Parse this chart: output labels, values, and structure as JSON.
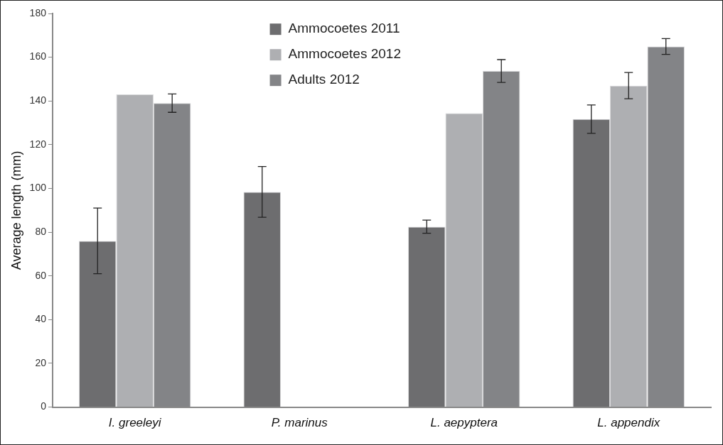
{
  "chart_data": {
    "type": "bar",
    "ylabel": "Average length (mm)",
    "categories": [
      "I. greeleyi",
      "P. marinus",
      "L. aepyptera",
      "L. appendix"
    ],
    "series": [
      {
        "name": "Ammocoetes 2011",
        "color": "#6d6d6f",
        "values": [
          76,
          98.4,
          82.5,
          131.7
        ],
        "errors": [
          15,
          11.6,
          3,
          6.5
        ]
      },
      {
        "name": "Ammocoetes 2012",
        "color": "#aeafb2",
        "values": [
          143,
          null,
          134.4,
          147
        ],
        "errors": [
          null,
          null,
          null,
          6
        ]
      },
      {
        "name": "Adults 2012",
        "color": "#838487",
        "values": [
          139,
          null,
          153.7,
          164.9
        ],
        "errors": [
          4.2,
          null,
          5.2,
          3.6
        ]
      }
    ],
    "ylim": [
      0,
      180
    ],
    "yticks": [
      0,
      20,
      40,
      60,
      80,
      100,
      120,
      140,
      160,
      180
    ],
    "grid": false,
    "legend": "top"
  }
}
